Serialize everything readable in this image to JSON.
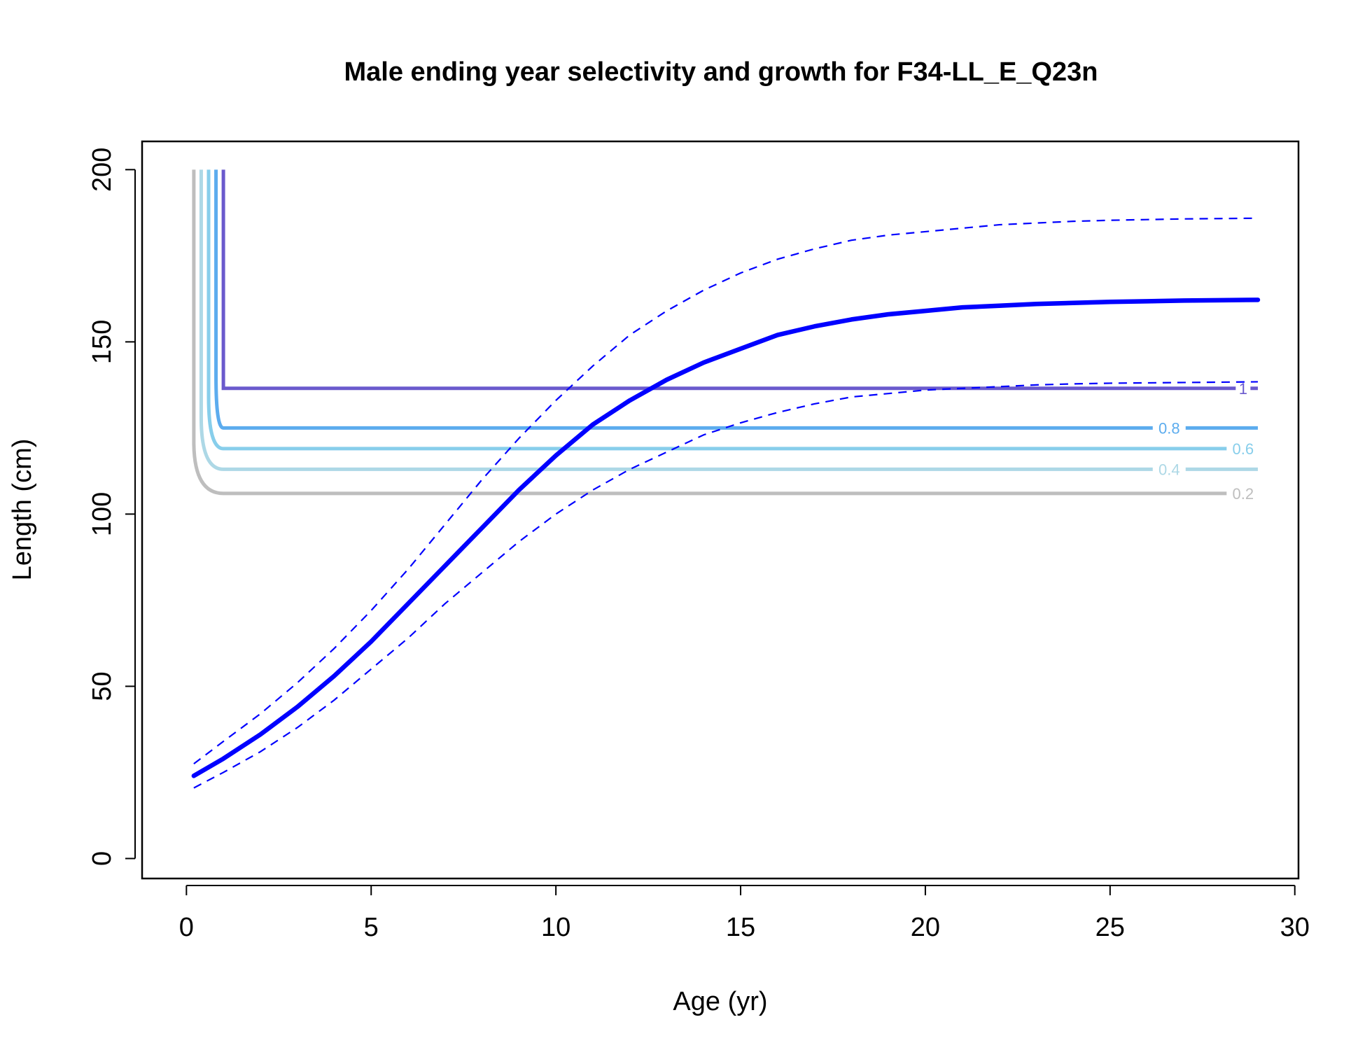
{
  "chart_data": {
    "type": "line",
    "title": "Male ending year selectivity and growth for F34-LL_E_Q23n",
    "xlabel": "Age (yr)",
    "ylabel": "Length (cm)",
    "xlim": [
      -1.2,
      30.1
    ],
    "ylim": [
      -5.8,
      208.2
    ],
    "xticks": [
      0,
      5,
      10,
      15,
      20,
      25,
      30
    ],
    "yticks": [
      0,
      50,
      100,
      150,
      200
    ],
    "grid": false,
    "legend": "none",
    "growth": {
      "color": "#0000FF",
      "mean": {
        "x": [
          0.2,
          1,
          2,
          3,
          4,
          5,
          6,
          7,
          8,
          9,
          10,
          11,
          12,
          13,
          14,
          15,
          16,
          17,
          18,
          19,
          20,
          21,
          22,
          23,
          24,
          25,
          26,
          27,
          28,
          29
        ],
        "y": [
          24,
          29,
          36,
          44,
          53,
          63,
          74,
          85,
          96,
          107,
          117,
          126,
          133,
          139,
          144,
          148,
          152,
          154.5,
          156.5,
          158,
          159,
          160,
          160.5,
          161,
          161.3,
          161.6,
          161.8,
          162,
          162.1,
          162.2
        ]
      },
      "upper": {
        "x": [
          0.2,
          1,
          2,
          3,
          4,
          5,
          6,
          7,
          8,
          9,
          10,
          11,
          12,
          13,
          14,
          15,
          16,
          17,
          18,
          19,
          20,
          21,
          22,
          23,
          24,
          25,
          26,
          27,
          28,
          29
        ],
        "y": [
          27.5,
          34,
          42,
          51,
          61,
          72,
          84,
          97,
          110,
          122,
          133,
          143,
          152,
          159,
          165,
          170,
          174,
          177,
          179.5,
          181,
          182,
          183,
          184,
          184.5,
          185,
          185.3,
          185.5,
          185.7,
          185.8,
          185.9
        ]
      },
      "lower": {
        "x": [
          0.2,
          1,
          2,
          3,
          4,
          5,
          6,
          7,
          8,
          9,
          10,
          11,
          12,
          13,
          14,
          15,
          16,
          17,
          18,
          19,
          20,
          21,
          22,
          23,
          24,
          25,
          26,
          27,
          28,
          29
        ],
        "y": [
          20.5,
          25,
          31,
          38,
          46,
          55,
          64,
          74,
          83,
          92,
          100,
          107,
          113,
          118,
          123,
          126.5,
          129.5,
          132,
          134,
          135,
          136,
          136.5,
          137,
          137.5,
          137.8,
          138,
          138.1,
          138.2,
          138.3,
          138.4
        ]
      }
    },
    "selectivity_contours": [
      {
        "level": "0.2",
        "color": "#BEBEBE",
        "length": 106,
        "x_vertical": 0.2
      },
      {
        "level": "0.4",
        "color": "#ADD8E6",
        "length": 113,
        "x_vertical": 0.4
      },
      {
        "level": "0.6",
        "color": "#87CEEB",
        "length": 119,
        "x_vertical": 0.6
      },
      {
        "level": "0.8",
        "color": "#5CACEE",
        "length": 125,
        "x_vertical": 0.8
      },
      {
        "level": "1",
        "color": "#6A5ACD",
        "length": 136.5,
        "x_vertical": 1.0
      }
    ]
  }
}
